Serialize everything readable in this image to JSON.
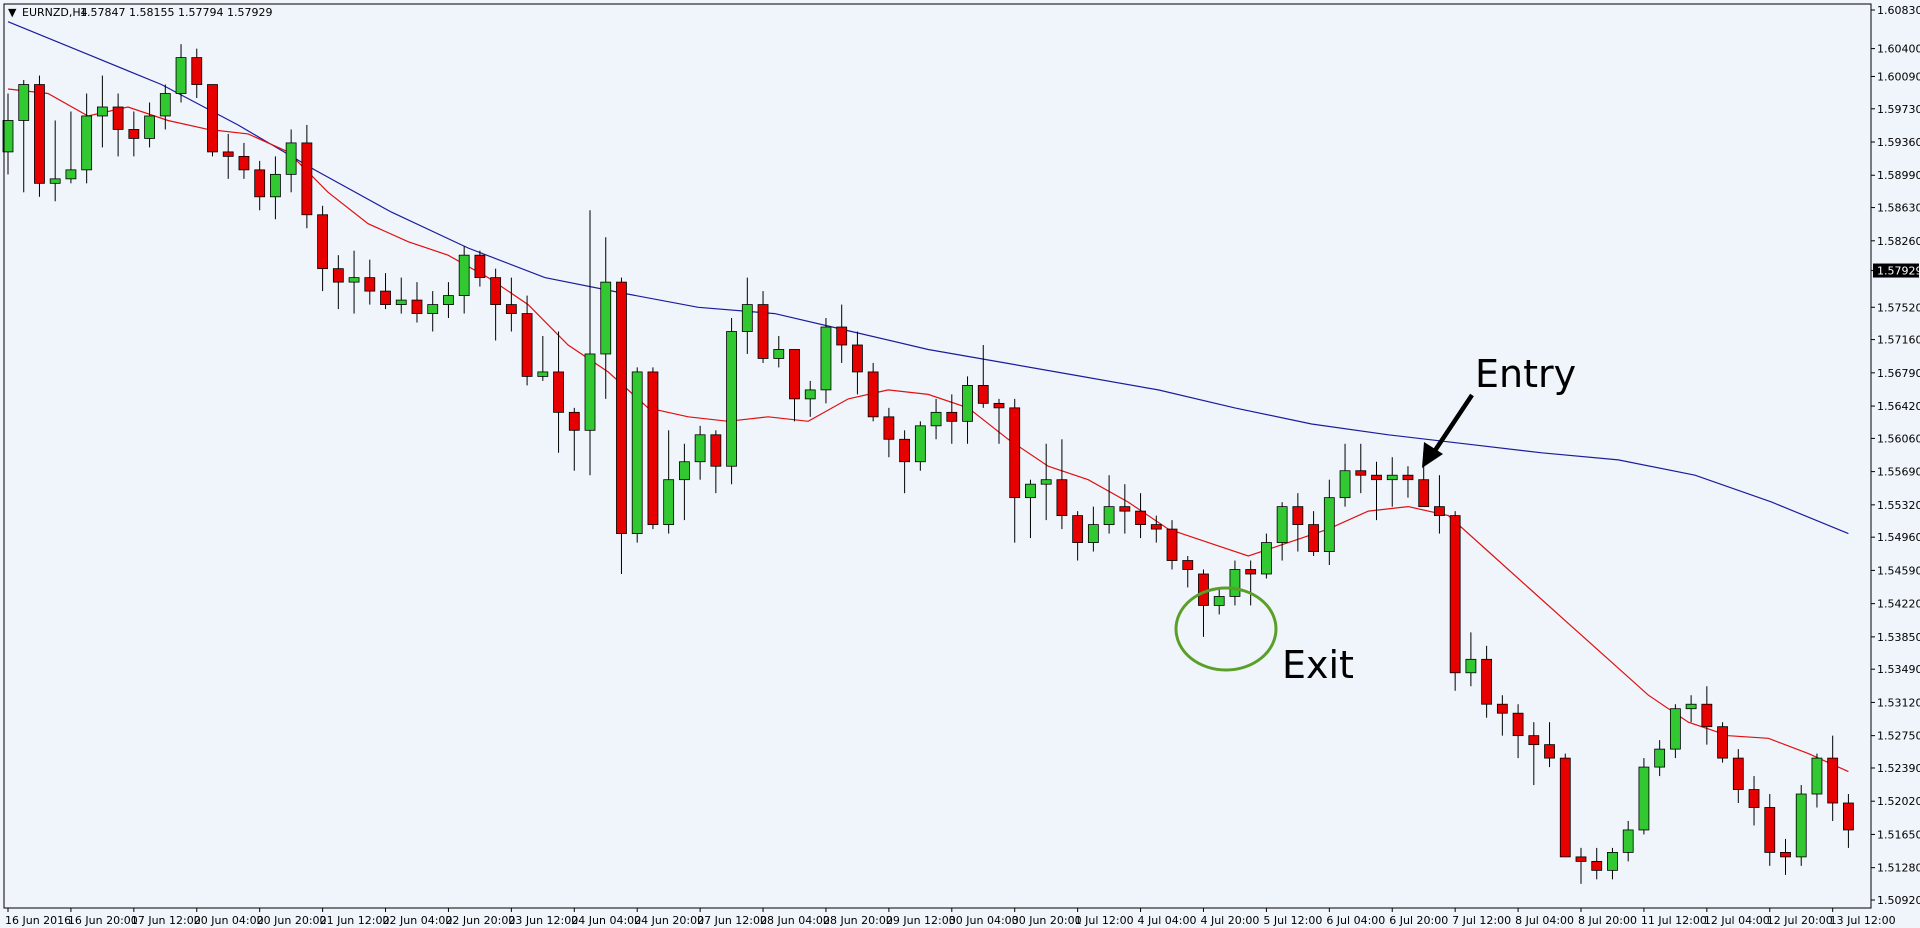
{
  "header": {
    "menu_glyph": "▼",
    "symbol": "EURNZD,H4",
    "ohlc": "1.57847 1.58155 1.57794 1.57929"
  },
  "colors": {
    "background": "#EFF5FB",
    "frame": "#000000",
    "bull": "#32C832",
    "bear": "#E60000",
    "candle_outline": "#000000",
    "ma_slow": "#1C1C9C",
    "ma_fast": "#E01010",
    "exit_circle": "#5AA028",
    "price_label_bg": "#000000"
  },
  "chart_data": {
    "type": "candlestick",
    "title": "EURNZD,H4",
    "ylim": [
      1.5092,
      1.6083
    ],
    "current_price": "1.57929",
    "y_ticks": [
      "1.60830",
      "1.60400",
      "1.60090",
      "1.59730",
      "1.59360",
      "1.58990",
      "1.58630",
      "1.58260",
      "1.57929",
      "1.57520",
      "1.57160",
      "1.56790",
      "1.56420",
      "1.56060",
      "1.55690",
      "1.55320",
      "1.54960",
      "1.54590",
      "1.54220",
      "1.53850",
      "1.53490",
      "1.53120",
      "1.52750",
      "1.52390",
      "1.52020",
      "1.51650",
      "1.51280",
      "1.50920"
    ],
    "x_ticks": [
      {
        "i": 0,
        "label": "16 Jun 2016"
      },
      {
        "i": 4,
        "label": "16 Jun 20:00"
      },
      {
        "i": 8,
        "label": "17 Jun 12:00"
      },
      {
        "i": 12,
        "label": "20 Jun 04:00"
      },
      {
        "i": 16,
        "label": "20 Jun 20:00"
      },
      {
        "i": 20,
        "label": "21 Jun 12:00"
      },
      {
        "i": 24,
        "label": "22 Jun 04:00"
      },
      {
        "i": 28,
        "label": "22 Jun 20:00"
      },
      {
        "i": 32,
        "label": "23 Jun 12:00"
      },
      {
        "i": 36,
        "label": "24 Jun 04:00"
      },
      {
        "i": 40,
        "label": "24 Jun 20:00"
      },
      {
        "i": 44,
        "label": "27 Jun 12:00"
      },
      {
        "i": 48,
        "label": "28 Jun 04:00"
      },
      {
        "i": 52,
        "label": "28 Jun 20:00"
      },
      {
        "i": 56,
        "label": "29 Jun 12:00"
      },
      {
        "i": 60,
        "label": "30 Jun 04:00"
      },
      {
        "i": 64,
        "label": "30 Jun 20:00"
      },
      {
        "i": 68,
        "label": "1 Jul 12:00"
      },
      {
        "i": 72,
        "label": "4 Jul 04:00"
      },
      {
        "i": 76,
        "label": "4 Jul 20:00"
      },
      {
        "i": 80,
        "label": "5 Jul 12:00"
      },
      {
        "i": 84,
        "label": "6 Jul 04:00"
      },
      {
        "i": 88,
        "label": "6 Jul 20:00"
      },
      {
        "i": 92,
        "label": "7 Jul 12:00"
      },
      {
        "i": 96,
        "label": "8 Jul 04:00"
      },
      {
        "i": 100,
        "label": "8 Jul 20:00"
      },
      {
        "i": 104,
        "label": "11 Jul 12:00"
      },
      {
        "i": 108,
        "label": "12 Jul 04:00"
      },
      {
        "i": 112,
        "label": "12 Jul 20:00"
      },
      {
        "i": 116,
        "label": "13 Jul 12:00"
      }
    ],
    "candles": [
      [
        1.5925,
        1.599,
        1.59,
        1.596
      ],
      [
        1.596,
        1.6005,
        1.588,
        1.6
      ],
      [
        1.6,
        1.601,
        1.5875,
        1.589
      ],
      [
        1.589,
        1.596,
        1.587,
        1.5895
      ],
      [
        1.5895,
        1.597,
        1.589,
        1.5905
      ],
      [
        1.5905,
        1.599,
        1.589,
        1.5965
      ],
      [
        1.5965,
        1.601,
        1.593,
        1.5975
      ],
      [
        1.5975,
        1.599,
        1.592,
        1.595
      ],
      [
        1.595,
        1.597,
        1.592,
        1.594
      ],
      [
        1.594,
        1.598,
        1.593,
        1.5965
      ],
      [
        1.5965,
        1.6,
        1.595,
        1.599
      ],
      [
        1.599,
        1.6045,
        1.598,
        1.603
      ],
      [
        1.603,
        1.604,
        1.5985,
        1.6
      ],
      [
        1.6,
        1.6,
        1.592,
        1.5925
      ],
      [
        1.5925,
        1.5945,
        1.5895,
        1.592
      ],
      [
        1.592,
        1.5935,
        1.5895,
        1.5905
      ],
      [
        1.5905,
        1.5915,
        1.586,
        1.5875
      ],
      [
        1.5875,
        1.592,
        1.585,
        1.59
      ],
      [
        1.59,
        1.595,
        1.588,
        1.5935
      ],
      [
        1.5935,
        1.5955,
        1.584,
        1.5855
      ],
      [
        1.5855,
        1.5865,
        1.577,
        1.5795
      ],
      [
        1.5795,
        1.581,
        1.575,
        1.578
      ],
      [
        1.578,
        1.5815,
        1.5745,
        1.5785
      ],
      [
        1.5785,
        1.5805,
        1.5755,
        1.577
      ],
      [
        1.577,
        1.579,
        1.575,
        1.5755
      ],
      [
        1.5755,
        1.5785,
        1.5745,
        1.576
      ],
      [
        1.576,
        1.578,
        1.5735,
        1.5745
      ],
      [
        1.5745,
        1.577,
        1.5725,
        1.5755
      ],
      [
        1.5755,
        1.578,
        1.574,
        1.5765
      ],
      [
        1.5765,
        1.582,
        1.5745,
        1.581
      ],
      [
        1.581,
        1.5815,
        1.5775,
        1.5785
      ],
      [
        1.5785,
        1.5795,
        1.5715,
        1.5755
      ],
      [
        1.5755,
        1.5785,
        1.5725,
        1.5745
      ],
      [
        1.5745,
        1.5765,
        1.5665,
        1.5675
      ],
      [
        1.5675,
        1.572,
        1.567,
        1.568
      ],
      [
        1.568,
        1.5725,
        1.559,
        1.5635
      ],
      [
        1.5635,
        1.564,
        1.557,
        1.5615
      ],
      [
        1.5615,
        1.586,
        1.5565,
        1.57
      ],
      [
        1.57,
        1.583,
        1.565,
        1.578
      ],
      [
        1.578,
        1.5785,
        1.5455,
        1.55
      ],
      [
        1.55,
        1.5685,
        1.549,
        1.568
      ],
      [
        1.568,
        1.5685,
        1.5505,
        1.551
      ],
      [
        1.551,
        1.5615,
        1.55,
        1.556
      ],
      [
        1.556,
        1.56,
        1.5515,
        1.558
      ],
      [
        1.558,
        1.562,
        1.556,
        1.561
      ],
      [
        1.561,
        1.5615,
        1.5545,
        1.5575
      ],
      [
        1.5575,
        1.574,
        1.5555,
        1.5725
      ],
      [
        1.5725,
        1.5785,
        1.57,
        1.5755
      ],
      [
        1.5755,
        1.577,
        1.569,
        1.5695
      ],
      [
        1.5695,
        1.572,
        1.5685,
        1.5705
      ],
      [
        1.5705,
        1.5705,
        1.5625,
        1.565
      ],
      [
        1.565,
        1.567,
        1.563,
        1.566
      ],
      [
        1.566,
        1.574,
        1.5645,
        1.573
      ],
      [
        1.573,
        1.5755,
        1.569,
        1.571
      ],
      [
        1.571,
        1.5725,
        1.5655,
        1.568
      ],
      [
        1.568,
        1.569,
        1.5625,
        1.563
      ],
      [
        1.563,
        1.564,
        1.5585,
        1.5605
      ],
      [
        1.5605,
        1.5615,
        1.5545,
        1.558
      ],
      [
        1.558,
        1.5625,
        1.557,
        1.562
      ],
      [
        1.562,
        1.565,
        1.5605,
        1.5635
      ],
      [
        1.5635,
        1.5655,
        1.56,
        1.5625
      ],
      [
        1.5625,
        1.5675,
        1.56,
        1.5665
      ],
      [
        1.5665,
        1.571,
        1.564,
        1.5645
      ],
      [
        1.5645,
        1.565,
        1.56,
        1.564
      ],
      [
        1.564,
        1.565,
        1.549,
        1.554
      ],
      [
        1.554,
        1.556,
        1.5495,
        1.5555
      ],
      [
        1.5555,
        1.56,
        1.5515,
        1.556
      ],
      [
        1.556,
        1.5605,
        1.5505,
        1.552
      ],
      [
        1.552,
        1.5525,
        1.547,
        1.549
      ],
      [
        1.549,
        1.553,
        1.548,
        1.551
      ],
      [
        1.551,
        1.5565,
        1.55,
        1.553
      ],
      [
        1.553,
        1.5555,
        1.55,
        1.5525
      ],
      [
        1.5525,
        1.5545,
        1.5495,
        1.551
      ],
      [
        1.551,
        1.552,
        1.549,
        1.5505
      ],
      [
        1.5505,
        1.5515,
        1.546,
        1.547
      ],
      [
        1.547,
        1.5475,
        1.544,
        1.546
      ],
      [
        1.5455,
        1.546,
        1.5385,
        1.542
      ],
      [
        1.542,
        1.544,
        1.541,
        1.543
      ],
      [
        1.543,
        1.547,
        1.542,
        1.546
      ],
      [
        1.546,
        1.547,
        1.542,
        1.5455
      ],
      [
        1.5455,
        1.55,
        1.545,
        1.549
      ],
      [
        1.549,
        1.5535,
        1.547,
        1.553
      ],
      [
        1.553,
        1.5545,
        1.548,
        1.551
      ],
      [
        1.551,
        1.5525,
        1.5475,
        1.548
      ],
      [
        1.548,
        1.556,
        1.5465,
        1.554
      ],
      [
        1.554,
        1.56,
        1.553,
        1.557
      ],
      [
        1.557,
        1.56,
        1.5545,
        1.5565
      ],
      [
        1.5565,
        1.558,
        1.5515,
        1.556
      ],
      [
        1.556,
        1.5585,
        1.553,
        1.5565
      ],
      [
        1.5565,
        1.5575,
        1.554,
        1.556
      ],
      [
        1.556,
        1.559,
        1.553,
        1.553
      ],
      [
        1.553,
        1.5565,
        1.55,
        1.552
      ],
      [
        1.552,
        1.5525,
        1.5325,
        1.5345
      ],
      [
        1.5345,
        1.539,
        1.533,
        1.536
      ],
      [
        1.536,
        1.5375,
        1.5295,
        1.531
      ],
      [
        1.531,
        1.532,
        1.5275,
        1.53
      ],
      [
        1.53,
        1.531,
        1.525,
        1.5275
      ],
      [
        1.5275,
        1.529,
        1.522,
        1.5265
      ],
      [
        1.5265,
        1.529,
        1.524,
        1.525
      ],
      [
        1.525,
        1.5255,
        1.514,
        1.514
      ],
      [
        1.514,
        1.515,
        1.511,
        1.5135
      ],
      [
        1.5135,
        1.515,
        1.5115,
        1.5125
      ],
      [
        1.5125,
        1.515,
        1.5115,
        1.5145
      ],
      [
        1.5145,
        1.518,
        1.5135,
        1.517
      ],
      [
        1.517,
        1.525,
        1.5165,
        1.524
      ],
      [
        1.524,
        1.527,
        1.523,
        1.526
      ],
      [
        1.526,
        1.531,
        1.525,
        1.5305
      ],
      [
        1.5305,
        1.532,
        1.529,
        1.531
      ],
      [
        1.531,
        1.533,
        1.5265,
        1.5285
      ],
      [
        1.5285,
        1.529,
        1.5245,
        1.525
      ],
      [
        1.525,
        1.526,
        1.52,
        1.5215
      ],
      [
        1.5215,
        1.523,
        1.5175,
        1.5195
      ],
      [
        1.5195,
        1.521,
        1.513,
        1.5145
      ],
      [
        1.5145,
        1.516,
        1.512,
        1.514
      ],
      [
        1.514,
        1.522,
        1.513,
        1.521
      ],
      [
        1.521,
        1.5255,
        1.5195,
        1.525
      ],
      [
        1.525,
        1.5275,
        1.518,
        1.52
      ],
      [
        1.52,
        1.521,
        1.515,
        1.517
      ]
    ],
    "ma_slow": [
      1.607,
      1.6035,
      1.6,
      1.5955,
      1.5905,
      1.5858,
      1.5818,
      1.5785,
      1.5768,
      1.5752,
      1.5745,
      1.5725,
      1.5705,
      1.569,
      1.5675,
      1.566,
      1.564,
      1.5622,
      1.561,
      1.56,
      1.559,
      1.5582,
      1.5565,
      1.5535,
      1.55
    ],
    "ma_fast": [
      1.5995,
      1.599,
      1.5965,
      1.5975,
      1.596,
      1.595,
      1.5945,
      1.5925,
      1.588,
      1.5845,
      1.5825,
      1.581,
      1.5785,
      1.5755,
      1.571,
      1.568,
      1.564,
      1.563,
      1.5625,
      1.563,
      1.5625,
      1.565,
      1.566,
      1.5655,
      1.564,
      1.5605,
      1.5575,
      1.556,
      1.5535,
      1.5505,
      1.549,
      1.5475,
      1.549,
      1.5505,
      1.5525,
      1.553,
      1.552,
      1.548,
      1.544,
      1.54,
      1.536,
      1.532,
      1.529,
      1.5275,
      1.5272,
      1.5255,
      1.5235
    ]
  },
  "annotations": {
    "entry_label": "Entry",
    "exit_label": "Exit"
  }
}
